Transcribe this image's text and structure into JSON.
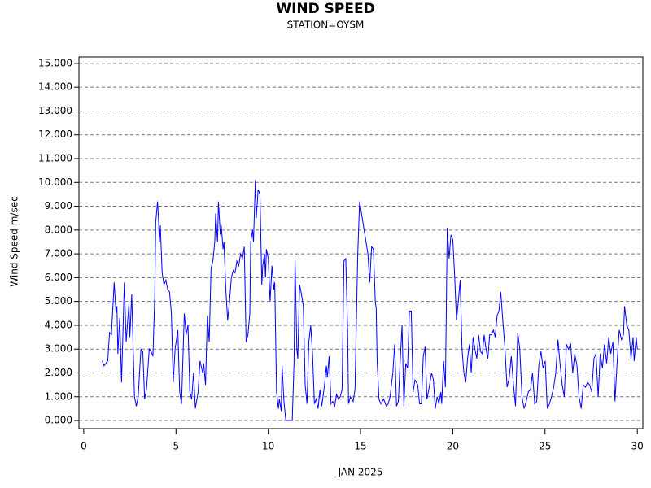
{
  "chart_data": {
    "type": "line",
    "title": "WIND SPEED",
    "subtitle": "STATION=OYSM",
    "x_label": "JAN 2025",
    "y_label": "Wind Speed m/sec",
    "color": "#0000ff",
    "grid": true,
    "xlim": [
      -0.26,
      30.3
    ],
    "ylim": [
      -0.34,
      15.27
    ],
    "xticks": [
      0,
      5,
      10,
      15,
      20,
      25,
      30
    ],
    "yticks": [
      {
        "value": 0,
        "label": "0.000"
      },
      {
        "value": 1,
        "label": "1.000"
      },
      {
        "value": 2,
        "label": "2.000"
      },
      {
        "value": 3,
        "label": "3.000"
      },
      {
        "value": 4,
        "label": "4.000"
      },
      {
        "value": 5,
        "label": "5.000"
      },
      {
        "value": 6,
        "label": "6.000"
      },
      {
        "value": 7,
        "label": "7.000"
      },
      {
        "value": 8,
        "label": "8.000"
      },
      {
        "value": 9,
        "label": "9.000"
      },
      {
        "value": 10,
        "label": "10.000"
      },
      {
        "value": 11,
        "label": "11.000"
      },
      {
        "value": 12,
        "label": "12.000"
      },
      {
        "value": 13,
        "label": "13.000"
      },
      {
        "value": 14,
        "label": "14.000"
      },
      {
        "value": 15,
        "label": "15.000"
      }
    ],
    "x": [
      1.0,
      1.1,
      1.3,
      1.4,
      1.5,
      1.65,
      1.75,
      1.8,
      1.85,
      1.95,
      2.05,
      2.2,
      2.3,
      2.45,
      2.5,
      2.6,
      2.75,
      2.85,
      2.95,
      3.1,
      3.2,
      3.3,
      3.4,
      3.55,
      3.65,
      3.75,
      3.85,
      3.9,
      4.0,
      4.05,
      4.1,
      4.15,
      4.25,
      4.35,
      4.45,
      4.55,
      4.65,
      4.75,
      4.85,
      4.95,
      5.1,
      5.2,
      5.3,
      5.45,
      5.55,
      5.65,
      5.75,
      5.85,
      5.95,
      6.05,
      6.2,
      6.3,
      6.45,
      6.5,
      6.6,
      6.7,
      6.8,
      6.9,
      7.0,
      7.1,
      7.15,
      7.25,
      7.3,
      7.4,
      7.45,
      7.55,
      7.6,
      7.7,
      7.8,
      7.9,
      8.0,
      8.1,
      8.2,
      8.3,
      8.4,
      8.5,
      8.6,
      8.7,
      8.8,
      8.9,
      9.0,
      9.05,
      9.15,
      9.2,
      9.3,
      9.35,
      9.45,
      9.55,
      9.65,
      9.7,
      9.8,
      9.85,
      9.9,
      10.0,
      10.1,
      10.2,
      10.3,
      10.35,
      10.45,
      10.55,
      10.6,
      10.7,
      10.75,
      10.85,
      10.95,
      11.3,
      11.4,
      11.45,
      11.55,
      11.6,
      11.7,
      11.8,
      11.9,
      12.0,
      12.1,
      12.2,
      12.3,
      12.4,
      12.5,
      12.6,
      12.7,
      12.8,
      12.9,
      13.05,
      13.15,
      13.2,
      13.3,
      13.4,
      13.5,
      13.6,
      13.7,
      13.8,
      13.9,
      14.0,
      14.1,
      14.2,
      14.3,
      14.35,
      14.45,
      14.6,
      14.7,
      14.85,
      14.95,
      15.4,
      15.5,
      15.6,
      15.7,
      15.8,
      15.85,
      15.9,
      16.0,
      16.1,
      16.25,
      16.4,
      16.5,
      16.6,
      16.75,
      16.85,
      16.95,
      17.05,
      17.15,
      17.25,
      17.35,
      17.45,
      17.55,
      17.65,
      17.75,
      17.85,
      17.95,
      18.1,
      18.2,
      18.3,
      18.4,
      18.5,
      18.6,
      18.7,
      18.85,
      18.95,
      19.05,
      19.15,
      19.25,
      19.35,
      19.4,
      19.5,
      19.6,
      19.7,
      19.8,
      19.9,
      20.0,
      20.1,
      20.2,
      20.3,
      20.4,
      20.5,
      20.6,
      20.7,
      20.8,
      20.9,
      21.0,
      21.1,
      21.2,
      21.3,
      21.4,
      21.5,
      21.6,
      21.7,
      21.8,
      21.9,
      22.0,
      22.1,
      22.2,
      22.3,
      22.4,
      22.5,
      22.6,
      22.71,
      22.83,
      22.94,
      23.06,
      23.17,
      23.29,
      23.4,
      23.52,
      23.63,
      23.75,
      23.86,
      23.98,
      24.09,
      24.21,
      24.32,
      24.44,
      24.55,
      24.66,
      24.78,
      24.89,
      25.01,
      25.12,
      25.24,
      25.35,
      25.47,
      25.58,
      25.7,
      25.81,
      25.93,
      26.04,
      26.16,
      26.27,
      26.39,
      26.5,
      26.61,
      26.73,
      26.84,
      26.96,
      27.07,
      27.19,
      27.3,
      27.42,
      27.53,
      27.65,
      27.76,
      27.88,
      27.99,
      28.11,
      28.22,
      28.34,
      28.45,
      28.56,
      28.68,
      28.79,
      28.91,
      29.02,
      29.14,
      29.25,
      29.31,
      29.43,
      29.54,
      29.66,
      29.77,
      29.83,
      29.94,
      30.0
    ],
    "values": [
      2.5,
      2.3,
      2.5,
      3.7,
      3.6,
      5.8,
      4.5,
      4.8,
      2.8,
      4.3,
      1.6,
      5.8,
      3.3,
      4.9,
      3.5,
      5.3,
      1.0,
      0.6,
      1.0,
      3.0,
      2.9,
      0.9,
      1.3,
      3.0,
      2.9,
      2.7,
      5.2,
      8.3,
      9.2,
      8.5,
      7.5,
      8.2,
      6.2,
      5.7,
      5.9,
      5.5,
      5.4,
      4.5,
      1.6,
      3.0,
      3.8,
      1.2,
      0.7,
      4.5,
      3.6,
      4.0,
      1.2,
      0.9,
      2.0,
      0.5,
      1.2,
      2.5,
      2.0,
      2.4,
      1.5,
      4.4,
      3.3,
      6.4,
      6.7,
      7.5,
      8.7,
      7.5,
      9.2,
      7.8,
      8.2,
      7.2,
      7.5,
      5.5,
      4.2,
      5.0,
      6.0,
      6.3,
      6.2,
      6.7,
      6.5,
      7.0,
      6.8,
      7.3,
      3.3,
      3.6,
      4.5,
      7.5,
      8.0,
      7.5,
      10.1,
      8.5,
      9.7,
      9.5,
      5.7,
      6.5,
      7.0,
      6.0,
      7.2,
      6.8,
      5.0,
      6.5,
      5.5,
      5.8,
      1.2,
      0.5,
      0.9,
      0.4,
      2.3,
      0.8,
      0,
      0,
      2.5,
      6.8,
      3.0,
      2.6,
      5.7,
      5.3,
      4.8,
      1.5,
      0.7,
      3.3,
      4.0,
      2.8,
      0.7,
      0.9,
      0.5,
      1.3,
      0.6,
      1.5,
      2.3,
      1.8,
      2.7,
      0.7,
      0.8,
      0.6,
      1.1,
      0.9,
      1.0,
      1.3,
      6.7,
      6.8,
      3.8,
      0.7,
      1.0,
      0.8,
      1.3,
      7.0,
      9.2,
      7.0,
      5.8,
      7.3,
      7.2,
      5.0,
      4.7,
      2.5,
      0.9,
      0.7,
      0.9,
      0.6,
      0.7,
      1.0,
      2.0,
      3.2,
      0.6,
      0.8,
      2.5,
      4.0,
      0.6,
      2.4,
      2.2,
      4.6,
      4.6,
      1.2,
      1.7,
      1.5,
      0.7,
      0.7,
      2.7,
      3.1,
      0.9,
      1.3,
      2.0,
      1.7,
      0.5,
      1.0,
      0.7,
      1.2,
      0.7,
      2.5,
      1.4,
      8.1,
      6.8,
      7.8,
      7.6,
      6.1,
      4.2,
      5.0,
      5.9,
      3.0,
      2.0,
      1.6,
      2.6,
      3.2,
      2.0,
      3.5,
      3.0,
      2.6,
      3.6,
      2.9,
      2.8,
      3.6,
      3.0,
      2.6,
      3.6,
      3.6,
      3.8,
      3.5,
      4.4,
      4.6,
      5.4,
      4.2,
      3.0,
      1.4,
      1.8,
      2.7,
      1.5,
      0.6,
      3.7,
      3.0,
      1.0,
      0.5,
      0.8,
      1.2,
      1.3,
      2.0,
      0.7,
      0.8,
      2.3,
      2.9,
      2.2,
      2.5,
      0.5,
      0.7,
      1.0,
      1.4,
      2.0,
      3.4,
      2.4,
      1.5,
      1.0,
      3.2,
      3.0,
      3.2,
      2.0,
      2.8,
      2.3,
      1.0,
      0.5,
      1.5,
      1.4,
      1.6,
      1.5,
      1.2,
      2.6,
      2.8,
      1.0,
      2.8,
      2.2,
      3.2,
      2.4,
      3.5,
      2.8,
      3.3,
      0.8,
      2.5,
      3.8,
      3.4,
      3.6,
      4.8,
      4.0,
      3.8,
      2.6,
      3.5,
      2.5,
      3.5,
      3.0
    ]
  }
}
